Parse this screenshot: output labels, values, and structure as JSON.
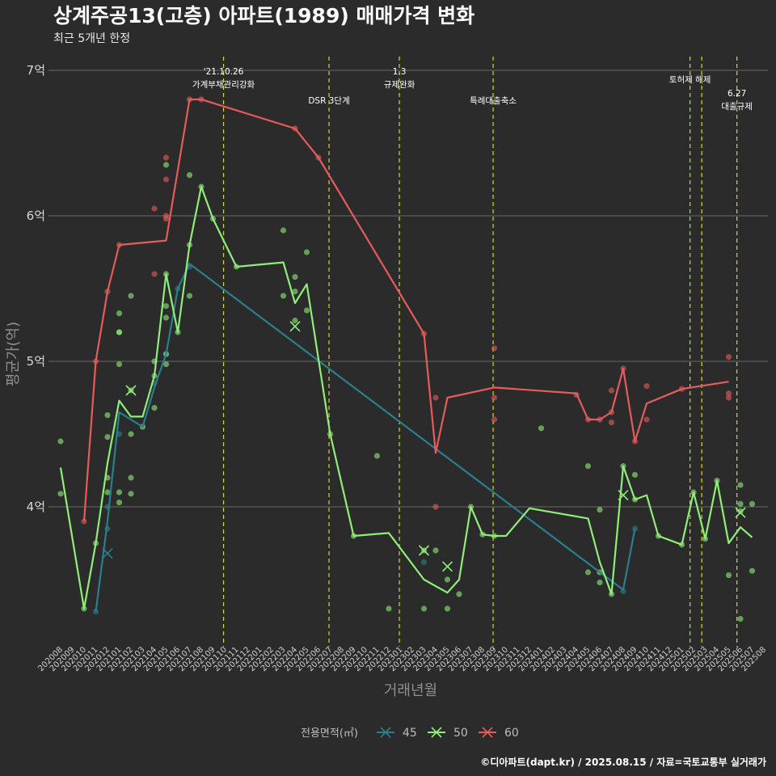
{
  "chart_data": {
    "type": "line",
    "title": "상계주공13(고층) 아파트(1989) 매매가격 변화",
    "subtitle": "최근 5개년 한정",
    "xlabel": "거래년월",
    "ylabel": "평균가(억)",
    "caption": "©디아파트(dapt.kr) / 2025.08.15 / 자료=국토교통부 실거래가",
    "legend_title": "전용면적(㎡)",
    "legend_position": "bottom",
    "grid": "horizontal",
    "ylim": [
      3.1,
      7.1
    ],
    "y_ticks": [
      {
        "value": 4,
        "label": "4억"
      },
      {
        "value": 5,
        "label": "5억"
      },
      {
        "value": 6,
        "label": "6억"
      },
      {
        "value": 7,
        "label": "7억"
      }
    ],
    "x_categories": [
      "202008",
      "202009",
      "202010",
      "202011",
      "202012",
      "202101",
      "202102",
      "202103",
      "202104",
      "202105",
      "202106",
      "202107",
      "202108",
      "202109",
      "202110",
      "202111",
      "202112",
      "202201",
      "202202",
      "202203",
      "202204",
      "202205",
      "202206",
      "202207",
      "202208",
      "202209",
      "202210",
      "202211",
      "202212",
      "202301",
      "202302",
      "202303",
      "202304",
      "202305",
      "202306",
      "202307",
      "202308",
      "202309",
      "202310",
      "202311",
      "202312",
      "202401",
      "202402",
      "202403",
      "202404",
      "202405",
      "202406",
      "202407",
      "202408",
      "202409",
      "202410",
      "202411",
      "202412",
      "202501",
      "202502",
      "202503",
      "202504",
      "202505",
      "202506",
      "202507",
      "202508"
    ],
    "events": [
      {
        "x": 13.9,
        "label_lines": [
          "'21.10.26",
          "가계부채관리강화"
        ],
        "level": 0
      },
      {
        "x": 22.9,
        "label_lines": [
          "DSR 3단계"
        ],
        "level": 2
      },
      {
        "x": 28.9,
        "label_lines": [
          "1.3",
          "규제완화"
        ],
        "level": 0
      },
      {
        "x": 36.9,
        "label_lines": [
          "특례대출축소"
        ],
        "level": 2
      },
      {
        "x": 53.7,
        "label_lines": [
          "토허제 해제"
        ],
        "level": 1
      },
      {
        "x": 54.7,
        "label_lines": [],
        "level": 1
      },
      {
        "x": 57.7,
        "label_lines": [
          "6.27",
          "대출규제"
        ],
        "level": 3
      }
    ],
    "series": [
      {
        "name": "45",
        "color": "#2a7f8e",
        "x": [
          3,
          4,
          5,
          7,
          8,
          9,
          10,
          11,
          48,
          49
        ],
        "y": [
          3.28,
          3.9,
          4.65,
          4.55,
          4.82,
          5.05,
          5.5,
          5.67,
          3.43,
          3.85
        ],
        "points_x": [
          3,
          4,
          4,
          5,
          8,
          9,
          10,
          11,
          31,
          48,
          49
        ],
        "points_y": [
          3.28,
          3.85,
          4.0,
          4.5,
          4.85,
          5.05,
          5.5,
          5.65,
          3.62,
          3.42,
          3.85
        ],
        "cross_x": [
          4
        ],
        "cross_y": [
          3.68
        ]
      },
      {
        "name": "50",
        "color": "#90ee78",
        "x": [
          0,
          2,
          3,
          4,
          5,
          6,
          7,
          8,
          9,
          10,
          11,
          12,
          13,
          15,
          19,
          20,
          21,
          23,
          25,
          28,
          31,
          33,
          34,
          35,
          36,
          37,
          38,
          40,
          45,
          46,
          47,
          48,
          49,
          50,
          51,
          53,
          54,
          55,
          56,
          57,
          58,
          59
        ],
        "y": [
          4.27,
          3.3,
          3.75,
          4.3,
          4.73,
          4.62,
          4.62,
          4.9,
          5.6,
          5.2,
          5.8,
          6.2,
          5.98,
          5.65,
          5.68,
          5.4,
          5.53,
          4.5,
          3.8,
          3.82,
          3.5,
          3.41,
          3.5,
          4.0,
          3.81,
          3.8,
          3.8,
          3.99,
          3.92,
          3.62,
          3.4,
          4.28,
          4.05,
          4.08,
          3.8,
          3.74,
          4.1,
          3.78,
          4.18,
          3.75,
          3.86,
          3.79
        ],
        "points_x": [
          0,
          0,
          2,
          3,
          4,
          4,
          4,
          4,
          5,
          5,
          5,
          5,
          5,
          5,
          6,
          6,
          6,
          6,
          6,
          7,
          8,
          8,
          8,
          9,
          9,
          9,
          9,
          9,
          9,
          10,
          11,
          11,
          11,
          12,
          13,
          15,
          19,
          19,
          20,
          20,
          20,
          21,
          21,
          23,
          25,
          27,
          28,
          31,
          31,
          32,
          33,
          33,
          34,
          35,
          36,
          37,
          41,
          45,
          45,
          46,
          46,
          46,
          47,
          48,
          49,
          49,
          51,
          53,
          54,
          55,
          56,
          57,
          58,
          58,
          58,
          58,
          59,
          59
        ],
        "points_y": [
          4.45,
          4.09,
          3.3,
          3.75,
          4.2,
          4.1,
          4.63,
          4.48,
          5.33,
          5.2,
          5.2,
          4.98,
          4.1,
          4.03,
          5.45,
          4.8,
          4.5,
          4.2,
          4.09,
          4.55,
          4.9,
          5.0,
          4.68,
          6.35,
          5.38,
          5.3,
          4.98,
          5.6,
          5.05,
          5.2,
          6.28,
          5.8,
          5.45,
          6.2,
          5.98,
          5.65,
          5.9,
          5.45,
          5.58,
          5.48,
          5.28,
          5.35,
          5.75,
          4.5,
          3.8,
          4.35,
          3.3,
          3.7,
          3.3,
          3.7,
          3.3,
          3.5,
          3.4,
          4.0,
          3.81,
          3.8,
          4.54,
          4.28,
          3.55,
          3.48,
          3.55,
          3.98,
          3.4,
          4.28,
          4.22,
          4.05,
          3.8,
          3.74,
          4.1,
          3.78,
          4.18,
          3.53,
          4.15,
          3.23,
          3.97,
          4.02,
          3.56,
          4.02
        ],
        "cross_x": [
          6,
          20,
          31,
          33,
          48,
          58
        ],
        "cross_y": [
          4.8,
          5.24,
          3.7,
          3.59,
          4.08,
          3.96
        ]
      },
      {
        "name": "60",
        "color": "#e65b5b",
        "x": [
          2,
          3,
          4,
          5,
          9,
          11,
          12,
          20,
          22,
          31,
          32,
          33,
          37,
          44,
          45,
          46,
          47,
          48,
          49,
          50,
          53,
          57
        ],
        "y": [
          3.9,
          5.0,
          5.48,
          5.8,
          5.83,
          6.8,
          6.8,
          6.6,
          6.4,
          5.19,
          4.37,
          4.75,
          4.82,
          4.78,
          4.6,
          4.6,
          4.65,
          4.95,
          4.45,
          4.71,
          4.81,
          4.86
        ],
        "points_x": [
          2,
          3,
          4,
          5,
          8,
          8,
          9,
          9,
          9,
          9,
          11,
          12,
          20,
          22,
          31,
          32,
          32,
          37,
          37,
          37,
          44,
          45,
          46,
          47,
          47,
          47,
          48,
          49,
          50,
          50,
          53,
          57,
          57,
          57
        ],
        "points_y": [
          3.9,
          5.0,
          5.48,
          5.8,
          6.05,
          5.6,
          6.4,
          6.25,
          6.0,
          5.98,
          6.8,
          6.8,
          6.6,
          6.4,
          5.19,
          4.75,
          4.0,
          5.09,
          4.75,
          4.6,
          4.77,
          4.6,
          4.6,
          4.8,
          4.65,
          4.58,
          4.95,
          4.45,
          4.83,
          4.6,
          4.81,
          5.03,
          4.78,
          4.75
        ],
        "cross_x": [],
        "cross_y": []
      }
    ]
  }
}
